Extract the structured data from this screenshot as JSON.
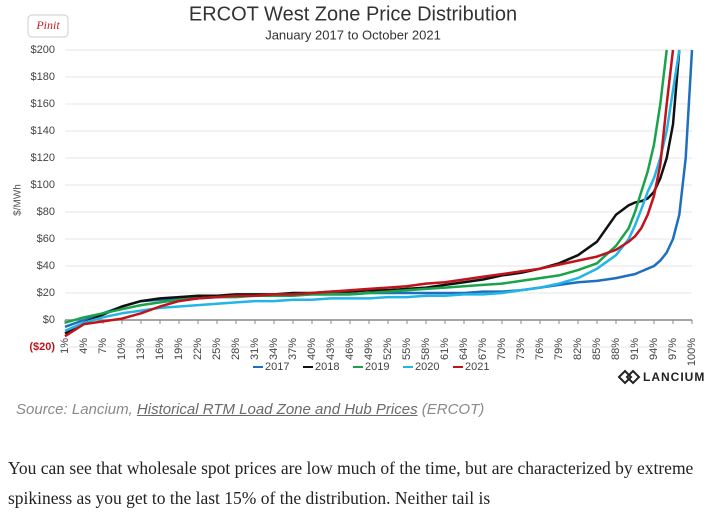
{
  "pin_button": "Pinit",
  "logo": "LANCIUM",
  "source": {
    "prefix": "Source: Lancium, ",
    "link": "Historical RTM Load Zone and Hub Prices",
    "suffix": " (ERCOT)"
  },
  "paragraph": "You can see that wholesale spot prices are low much of the time, but are characterized by extreme spikiness as you get to the last 15% of the distribution. Neither tail is",
  "chart_data": {
    "type": "line",
    "title": "ERCOT West Zone Price Distribution",
    "subtitle": "January 2017 to October 2021",
    "ylabel": "$/MWh",
    "x": [
      1,
      4,
      7,
      10,
      13,
      16,
      19,
      22,
      25,
      28,
      31,
      34,
      37,
      40,
      43,
      46,
      49,
      52,
      55,
      58,
      61,
      64,
      67,
      70,
      73,
      76,
      79,
      82,
      85,
      88,
      90,
      91,
      92,
      93,
      94,
      95,
      96,
      97,
      98,
      99,
      100
    ],
    "xlim": [
      1,
      100
    ],
    "xticks": [
      {
        "value": 1,
        "label": "1%"
      },
      {
        "value": 4,
        "label": "4%"
      },
      {
        "value": 7,
        "label": "7%"
      },
      {
        "value": 10,
        "label": "10%"
      },
      {
        "value": 13,
        "label": "13%"
      },
      {
        "value": 16,
        "label": "16%"
      },
      {
        "value": 19,
        "label": "19%"
      },
      {
        "value": 22,
        "label": "22%"
      },
      {
        "value": 25,
        "label": "25%"
      },
      {
        "value": 28,
        "label": "28%"
      },
      {
        "value": 31,
        "label": "31%"
      },
      {
        "value": 34,
        "label": "34%"
      },
      {
        "value": 37,
        "label": "37%"
      },
      {
        "value": 40,
        "label": "40%"
      },
      {
        "value": 43,
        "label": "43%"
      },
      {
        "value": 46,
        "label": "46%"
      },
      {
        "value": 49,
        "label": "49%"
      },
      {
        "value": 52,
        "label": "52%"
      },
      {
        "value": 55,
        "label": "55%"
      },
      {
        "value": 58,
        "label": "58%"
      },
      {
        "value": 61,
        "label": "61%"
      },
      {
        "value": 64,
        "label": "64%"
      },
      {
        "value": 67,
        "label": "67%"
      },
      {
        "value": 70,
        "label": "70%"
      },
      {
        "value": 73,
        "label": "73%"
      },
      {
        "value": 76,
        "label": "76%"
      },
      {
        "value": 79,
        "label": "79%"
      },
      {
        "value": 82,
        "label": "82%"
      },
      {
        "value": 85,
        "label": "85%"
      },
      {
        "value": 88,
        "label": "88%"
      },
      {
        "value": 91,
        "label": "91%"
      },
      {
        "value": 94,
        "label": "94%"
      },
      {
        "value": 97,
        "label": "97%"
      },
      {
        "value": 100,
        "label": "100%"
      }
    ],
    "ylim": [
      -20,
      200
    ],
    "yticks": [
      {
        "value": -20,
        "label": "($20)"
      },
      {
        "value": 0,
        "label": "$0"
      },
      {
        "value": 20,
        "label": "$20"
      },
      {
        "value": 40,
        "label": "$40"
      },
      {
        "value": 60,
        "label": "$60"
      },
      {
        "value": 80,
        "label": "$80"
      },
      {
        "value": 100,
        "label": "$100"
      },
      {
        "value": 120,
        "label": "$120"
      },
      {
        "value": 140,
        "label": "$140"
      },
      {
        "value": 160,
        "label": "$160"
      },
      {
        "value": 180,
        "label": "$180"
      },
      {
        "value": 200,
        "label": "$200"
      }
    ],
    "grid": true,
    "legend": "bottom",
    "series": [
      {
        "name": "2017",
        "color": "#1f6fbf",
        "values": [
          -5,
          0,
          5,
          10,
          14,
          15,
          16,
          17,
          17,
          18,
          18,
          18,
          19,
          19,
          19,
          19,
          20,
          20,
          20,
          20,
          20,
          20,
          21,
          21,
          22,
          24,
          26,
          28,
          29,
          31,
          33,
          34,
          36,
          38,
          40,
          44,
          50,
          60,
          78,
          120,
          200
        ]
      },
      {
        "name": "2018",
        "color": "#111111",
        "values": [
          -10,
          -2,
          4,
          10,
          14,
          16,
          17,
          18,
          18,
          19,
          19,
          19,
          20,
          20,
          21,
          21,
          22,
          22,
          23,
          24,
          26,
          28,
          30,
          33,
          35,
          38,
          42,
          48,
          58,
          78,
          85,
          87,
          88,
          90,
          95,
          105,
          120,
          145,
          200,
          null,
          null
        ]
      },
      {
        "name": "2019",
        "color": "#1aa34a",
        "values": [
          -2,
          2,
          5,
          8,
          11,
          13,
          15,
          16,
          17,
          17,
          18,
          18,
          18,
          19,
          19,
          19,
          20,
          21,
          22,
          23,
          24,
          25,
          26,
          27,
          29,
          31,
          33,
          37,
          42,
          55,
          68,
          80,
          95,
          110,
          130,
          160,
          200,
          null,
          null,
          null,
          null
        ]
      },
      {
        "name": "2020",
        "color": "#22b5e6",
        "values": [
          -8,
          -2,
          2,
          5,
          7,
          9,
          10,
          11,
          12,
          13,
          14,
          14,
          15,
          15,
          16,
          16,
          16,
          17,
          17,
          18,
          18,
          19,
          19,
          20,
          22,
          24,
          27,
          31,
          38,
          48,
          60,
          70,
          82,
          95,
          105,
          120,
          140,
          170,
          200,
          null,
          null
        ]
      },
      {
        "name": "2021",
        "color": "#c0141c",
        "values": [
          -12,
          -3,
          -1,
          1,
          5,
          10,
          14,
          16,
          17,
          18,
          18,
          19,
          19,
          20,
          21,
          22,
          23,
          24,
          25,
          27,
          28,
          30,
          32,
          34,
          36,
          38,
          41,
          44,
          47,
          52,
          58,
          62,
          68,
          78,
          92,
          115,
          160,
          200,
          null,
          null,
          null
        ]
      }
    ]
  }
}
